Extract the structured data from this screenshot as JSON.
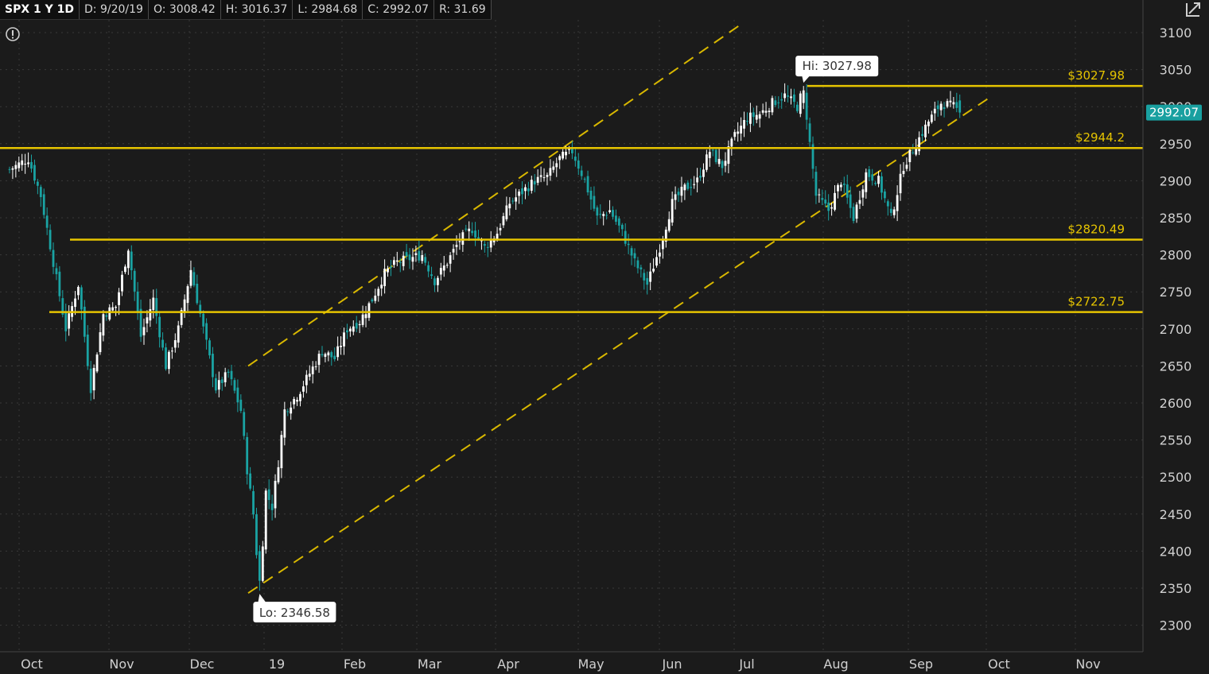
{
  "header": {
    "symbol": "SPX 1 Y 1D",
    "date": "D: 9/20/19",
    "open": "O: 3008.42",
    "high": "H: 3016.37",
    "low": "L: 2984.68",
    "close": "C: 2992.07",
    "range": "R: 31.69"
  },
  "icons": {
    "alert": "alert-circle-icon",
    "collapse": "collapse-arrow-icon"
  },
  "colors": {
    "bull": "#ffffff",
    "bear": "#1aa3a3",
    "level": "#e6c400",
    "channel": "#d9b800",
    "bg": "#1b1b1b"
  },
  "chart_data": {
    "type": "candlestick",
    "yticks": [
      2300,
      2350,
      2400,
      2450,
      2500,
      2550,
      2600,
      2650,
      2700,
      2750,
      2800,
      2850,
      2900,
      2950,
      3000,
      3050,
      3100
    ],
    "ylim": [
      2280,
      3110
    ],
    "months": [
      "Oct",
      "Nov",
      "Dec",
      "19",
      "Feb",
      "Mar",
      "Apr",
      "May",
      "Jun",
      "Jul",
      "Aug",
      "Sep",
      "Oct",
      "Nov"
    ],
    "levels": [
      {
        "label": "$3027.98",
        "value": 3027.98
      },
      {
        "label": "$2944.2",
        "value": 2944.2
      },
      {
        "label": "$2820.49",
        "value": 2820.49
      },
      {
        "label": "$2722.75",
        "value": 2722.75
      }
    ],
    "last_price": "2992.07",
    "last_value": 2992.07,
    "hi_label": "Hi: 3027.98",
    "lo_label": "Lo: 2346.58",
    "path": [
      [
        0,
        2915
      ],
      [
        6,
        2930
      ],
      [
        10,
        2880
      ],
      [
        14,
        2790
      ],
      [
        18,
        2700
      ],
      [
        22,
        2760
      ],
      [
        26,
        2620
      ],
      [
        30,
        2720
      ],
      [
        34,
        2730
      ],
      [
        38,
        2810
      ],
      [
        42,
        2690
      ],
      [
        46,
        2740
      ],
      [
        50,
        2650
      ],
      [
        54,
        2700
      ],
      [
        58,
        2780
      ],
      [
        62,
        2700
      ],
      [
        66,
        2620
      ],
      [
        70,
        2640
      ],
      [
        74,
        2590
      ],
      [
        76,
        2510
      ],
      [
        78,
        2450
      ],
      [
        80,
        2346.58
      ],
      [
        82,
        2480
      ],
      [
        84,
        2460
      ],
      [
        86,
        2520
      ],
      [
        88,
        2590
      ],
      [
        92,
        2610
      ],
      [
        96,
        2640
      ],
      [
        100,
        2670
      ],
      [
        104,
        2660
      ],
      [
        108,
        2700
      ],
      [
        112,
        2710
      ],
      [
        116,
        2740
      ],
      [
        120,
        2775
      ],
      [
        124,
        2790
      ],
      [
        128,
        2795
      ],
      [
        132,
        2800
      ],
      [
        136,
        2765
      ],
      [
        140,
        2790
      ],
      [
        144,
        2820
      ],
      [
        148,
        2835
      ],
      [
        152,
        2810
      ],
      [
        156,
        2830
      ],
      [
        160,
        2870
      ],
      [
        164,
        2885
      ],
      [
        168,
        2900
      ],
      [
        172,
        2905
      ],
      [
        176,
        2930
      ],
      [
        180,
        2940
      ],
      [
        184,
        2900
      ],
      [
        188,
        2850
      ],
      [
        192,
        2860
      ],
      [
        196,
        2830
      ],
      [
        200,
        2790
      ],
      [
        204,
        2760
      ],
      [
        208,
        2810
      ],
      [
        212,
        2870
      ],
      [
        216,
        2890
      ],
      [
        220,
        2900
      ],
      [
        224,
        2940
      ],
      [
        228,
        2920
      ],
      [
        232,
        2960
      ],
      [
        236,
        2985
      ],
      [
        240,
        2990
      ],
      [
        244,
        3005
      ],
      [
        248,
        3015
      ],
      [
        252,
        3000
      ],
      [
        254,
        3025
      ],
      [
        256,
        2950
      ],
      [
        258,
        2880
      ],
      [
        262,
        2860
      ],
      [
        266,
        2900
      ],
      [
        270,
        2850
      ],
      [
        274,
        2910
      ],
      [
        278,
        2900
      ],
      [
        282,
        2850
      ],
      [
        286,
        2920
      ],
      [
        290,
        2950
      ],
      [
        294,
        2980
      ],
      [
        298,
        3005
      ],
      [
        302,
        3000
      ],
      [
        304,
        2992.07
      ]
    ]
  }
}
